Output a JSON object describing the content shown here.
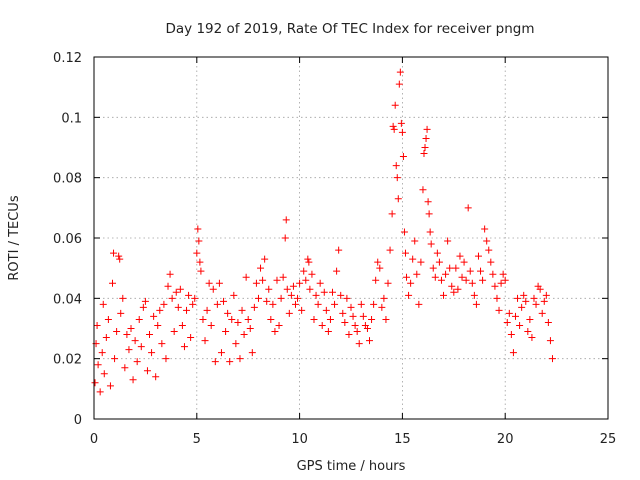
{
  "chart_data": {
    "type": "scatter",
    "title": "Day 192 of 2019, Rate Of TEC Index for receiver pngm",
    "xlabel": "GPS time / hours",
    "ylabel": "ROTI / TECUs",
    "xlim": [
      0,
      25
    ],
    "ylim": [
      0,
      0.12
    ],
    "xticks": [
      0,
      5,
      10,
      15,
      20,
      25
    ],
    "xtick_labels": [
      "0",
      "5",
      "10",
      "15",
      "20",
      "25"
    ],
    "yticks": [
      0,
      0.02,
      0.04,
      0.06,
      0.08,
      0.1,
      0.12
    ],
    "ytick_labels": [
      "0",
      "0.02",
      "0.04",
      "0.06",
      "0.08",
      "0.1",
      "0.12"
    ],
    "grid": true,
    "marker": "plus",
    "color": "#ff0000",
    "series": [
      {
        "name": "ROTI",
        "points": [
          [
            0.05,
            0.012
          ],
          [
            0.1,
            0.025
          ],
          [
            0.15,
            0.031
          ],
          [
            0.2,
            0.018
          ],
          [
            0.3,
            0.009
          ],
          [
            0.4,
            0.022
          ],
          [
            0.45,
            0.038
          ],
          [
            0.5,
            0.015
          ],
          [
            0.6,
            0.027
          ],
          [
            0.7,
            0.033
          ],
          [
            0.8,
            0.011
          ],
          [
            0.9,
            0.045
          ],
          [
            0.95,
            0.055
          ],
          [
            1.0,
            0.02
          ],
          [
            1.1,
            0.029
          ],
          [
            1.2,
            0.054
          ],
          [
            1.25,
            0.053
          ],
          [
            1.3,
            0.035
          ],
          [
            1.4,
            0.04
          ],
          [
            1.5,
            0.017
          ],
          [
            1.6,
            0.028
          ],
          [
            1.7,
            0.023
          ],
          [
            1.8,
            0.03
          ],
          [
            1.9,
            0.013
          ],
          [
            2.0,
            0.026
          ],
          [
            2.1,
            0.019
          ],
          [
            2.2,
            0.033
          ],
          [
            2.3,
            0.024
          ],
          [
            2.4,
            0.037
          ],
          [
            2.5,
            0.039
          ],
          [
            2.6,
            0.016
          ],
          [
            2.7,
            0.028
          ],
          [
            2.8,
            0.022
          ],
          [
            2.9,
            0.034
          ],
          [
            3.0,
            0.014
          ],
          [
            3.1,
            0.031
          ],
          [
            3.2,
            0.036
          ],
          [
            3.3,
            0.025
          ],
          [
            3.4,
            0.038
          ],
          [
            3.5,
            0.02
          ],
          [
            3.6,
            0.044
          ],
          [
            3.7,
            0.048
          ],
          [
            3.8,
            0.04
          ],
          [
            3.9,
            0.029
          ],
          [
            4.0,
            0.042
          ],
          [
            4.1,
            0.037
          ],
          [
            4.2,
            0.043
          ],
          [
            4.3,
            0.031
          ],
          [
            4.4,
            0.024
          ],
          [
            4.5,
            0.036
          ],
          [
            4.6,
            0.041
          ],
          [
            4.7,
            0.027
          ],
          [
            4.8,
            0.038
          ],
          [
            4.9,
            0.04
          ],
          [
            5.0,
            0.055
          ],
          [
            5.05,
            0.063
          ],
          [
            5.1,
            0.059
          ],
          [
            5.15,
            0.052
          ],
          [
            5.2,
            0.049
          ],
          [
            5.3,
            0.033
          ],
          [
            5.4,
            0.026
          ],
          [
            5.5,
            0.036
          ],
          [
            5.6,
            0.045
          ],
          [
            5.7,
            0.031
          ],
          [
            5.8,
            0.043
          ],
          [
            5.9,
            0.019
          ],
          [
            6.0,
            0.038
          ],
          [
            6.1,
            0.045
          ],
          [
            6.2,
            0.022
          ],
          [
            6.3,
            0.039
          ],
          [
            6.4,
            0.029
          ],
          [
            6.5,
            0.035
          ],
          [
            6.6,
            0.019
          ],
          [
            6.7,
            0.033
          ],
          [
            6.8,
            0.041
          ],
          [
            6.9,
            0.025
          ],
          [
            7.0,
            0.032
          ],
          [
            7.1,
            0.02
          ],
          [
            7.2,
            0.036
          ],
          [
            7.3,
            0.028
          ],
          [
            7.4,
            0.047
          ],
          [
            7.5,
            0.033
          ],
          [
            7.6,
            0.03
          ],
          [
            7.7,
            0.022
          ],
          [
            7.8,
            0.037
          ],
          [
            7.9,
            0.045
          ],
          [
            8.0,
            0.04
          ],
          [
            8.1,
            0.05
          ],
          [
            8.2,
            0.046
          ],
          [
            8.3,
            0.053
          ],
          [
            8.4,
            0.039
          ],
          [
            8.5,
            0.043
          ],
          [
            8.6,
            0.033
          ],
          [
            8.7,
            0.038
          ],
          [
            8.8,
            0.029
          ],
          [
            8.9,
            0.046
          ],
          [
            9.0,
            0.031
          ],
          [
            9.1,
            0.04
          ],
          [
            9.2,
            0.047
          ],
          [
            9.3,
            0.06
          ],
          [
            9.35,
            0.066
          ],
          [
            9.4,
            0.043
          ],
          [
            9.5,
            0.035
          ],
          [
            9.6,
            0.041
          ],
          [
            9.7,
            0.044
          ],
          [
            9.8,
            0.038
          ],
          [
            9.9,
            0.04
          ],
          [
            10.0,
            0.045
          ],
          [
            10.1,
            0.036
          ],
          [
            10.2,
            0.049
          ],
          [
            10.3,
            0.046
          ],
          [
            10.4,
            0.053
          ],
          [
            10.45,
            0.052
          ],
          [
            10.5,
            0.043
          ],
          [
            10.6,
            0.048
          ],
          [
            10.7,
            0.033
          ],
          [
            10.8,
            0.041
          ],
          [
            10.9,
            0.038
          ],
          [
            11.0,
            0.045
          ],
          [
            11.1,
            0.031
          ],
          [
            11.2,
            0.042
          ],
          [
            11.3,
            0.036
          ],
          [
            11.4,
            0.029
          ],
          [
            11.5,
            0.033
          ],
          [
            11.6,
            0.042
          ],
          [
            11.7,
            0.038
          ],
          [
            11.8,
            0.049
          ],
          [
            11.9,
            0.056
          ],
          [
            12.0,
            0.041
          ],
          [
            12.1,
            0.035
          ],
          [
            12.2,
            0.032
          ],
          [
            12.3,
            0.04
          ],
          [
            12.4,
            0.028
          ],
          [
            12.5,
            0.037
          ],
          [
            12.6,
            0.034
          ],
          [
            12.7,
            0.031
          ],
          [
            12.8,
            0.029
          ],
          [
            12.9,
            0.025
          ],
          [
            13.0,
            0.038
          ],
          [
            13.1,
            0.034
          ],
          [
            13.2,
            0.031
          ],
          [
            13.3,
            0.03
          ],
          [
            13.4,
            0.026
          ],
          [
            13.5,
            0.033
          ],
          [
            13.6,
            0.038
          ],
          [
            13.7,
            0.046
          ],
          [
            13.8,
            0.052
          ],
          [
            13.9,
            0.05
          ],
          [
            14.0,
            0.037
          ],
          [
            14.1,
            0.04
          ],
          [
            14.2,
            0.033
          ],
          [
            14.3,
            0.045
          ],
          [
            14.4,
            0.056
          ],
          [
            14.5,
            0.068
          ],
          [
            14.55,
            0.097
          ],
          [
            14.6,
            0.096
          ],
          [
            14.65,
            0.104
          ],
          [
            14.7,
            0.084
          ],
          [
            14.75,
            0.08
          ],
          [
            14.8,
            0.073
          ],
          [
            14.85,
            0.111
          ],
          [
            14.9,
            0.115
          ],
          [
            14.95,
            0.098
          ],
          [
            15.0,
            0.095
          ],
          [
            15.05,
            0.087
          ],
          [
            15.1,
            0.062
          ],
          [
            15.15,
            0.055
          ],
          [
            15.2,
            0.047
          ],
          [
            15.3,
            0.041
          ],
          [
            15.4,
            0.045
          ],
          [
            15.5,
            0.053
          ],
          [
            15.6,
            0.059
          ],
          [
            15.7,
            0.048
          ],
          [
            15.8,
            0.038
          ],
          [
            15.9,
            0.052
          ],
          [
            16.0,
            0.076
          ],
          [
            16.05,
            0.088
          ],
          [
            16.1,
            0.09
          ],
          [
            16.15,
            0.093
          ],
          [
            16.2,
            0.096
          ],
          [
            16.25,
            0.072
          ],
          [
            16.3,
            0.068
          ],
          [
            16.35,
            0.062
          ],
          [
            16.4,
            0.058
          ],
          [
            16.5,
            0.05
          ],
          [
            16.6,
            0.047
          ],
          [
            16.7,
            0.055
          ],
          [
            16.8,
            0.052
          ],
          [
            16.9,
            0.046
          ],
          [
            17.0,
            0.041
          ],
          [
            17.1,
            0.048
          ],
          [
            17.2,
            0.059
          ],
          [
            17.3,
            0.05
          ],
          [
            17.4,
            0.044
          ],
          [
            17.5,
            0.042
          ],
          [
            17.6,
            0.05
          ],
          [
            17.7,
            0.043
          ],
          [
            17.8,
            0.054
          ],
          [
            17.9,
            0.047
          ],
          [
            18.0,
            0.052
          ],
          [
            18.1,
            0.046
          ],
          [
            18.2,
            0.07
          ],
          [
            18.3,
            0.049
          ],
          [
            18.4,
            0.045
          ],
          [
            18.5,
            0.041
          ],
          [
            18.6,
            0.038
          ],
          [
            18.7,
            0.054
          ],
          [
            18.8,
            0.049
          ],
          [
            18.9,
            0.046
          ],
          [
            19.0,
            0.063
          ],
          [
            19.1,
            0.059
          ],
          [
            19.2,
            0.056
          ],
          [
            19.3,
            0.052
          ],
          [
            19.4,
            0.048
          ],
          [
            19.5,
            0.044
          ],
          [
            19.6,
            0.04
          ],
          [
            19.7,
            0.036
          ],
          [
            19.8,
            0.045
          ],
          [
            19.9,
            0.048
          ],
          [
            20.0,
            0.046
          ],
          [
            20.1,
            0.032
          ],
          [
            20.2,
            0.035
          ],
          [
            20.3,
            0.028
          ],
          [
            20.4,
            0.022
          ],
          [
            20.5,
            0.034
          ],
          [
            20.6,
            0.04
          ],
          [
            20.7,
            0.031
          ],
          [
            20.8,
            0.037
          ],
          [
            20.9,
            0.041
          ],
          [
            21.0,
            0.039
          ],
          [
            21.1,
            0.029
          ],
          [
            21.2,
            0.033
          ],
          [
            21.3,
            0.027
          ],
          [
            21.4,
            0.04
          ],
          [
            21.5,
            0.038
          ],
          [
            21.6,
            0.044
          ],
          [
            21.7,
            0.043
          ],
          [
            21.8,
            0.035
          ],
          [
            21.9,
            0.039
          ],
          [
            22.0,
            0.041
          ],
          [
            22.1,
            0.032
          ],
          [
            22.2,
            0.026
          ],
          [
            22.3,
            0.02
          ]
        ]
      }
    ]
  }
}
